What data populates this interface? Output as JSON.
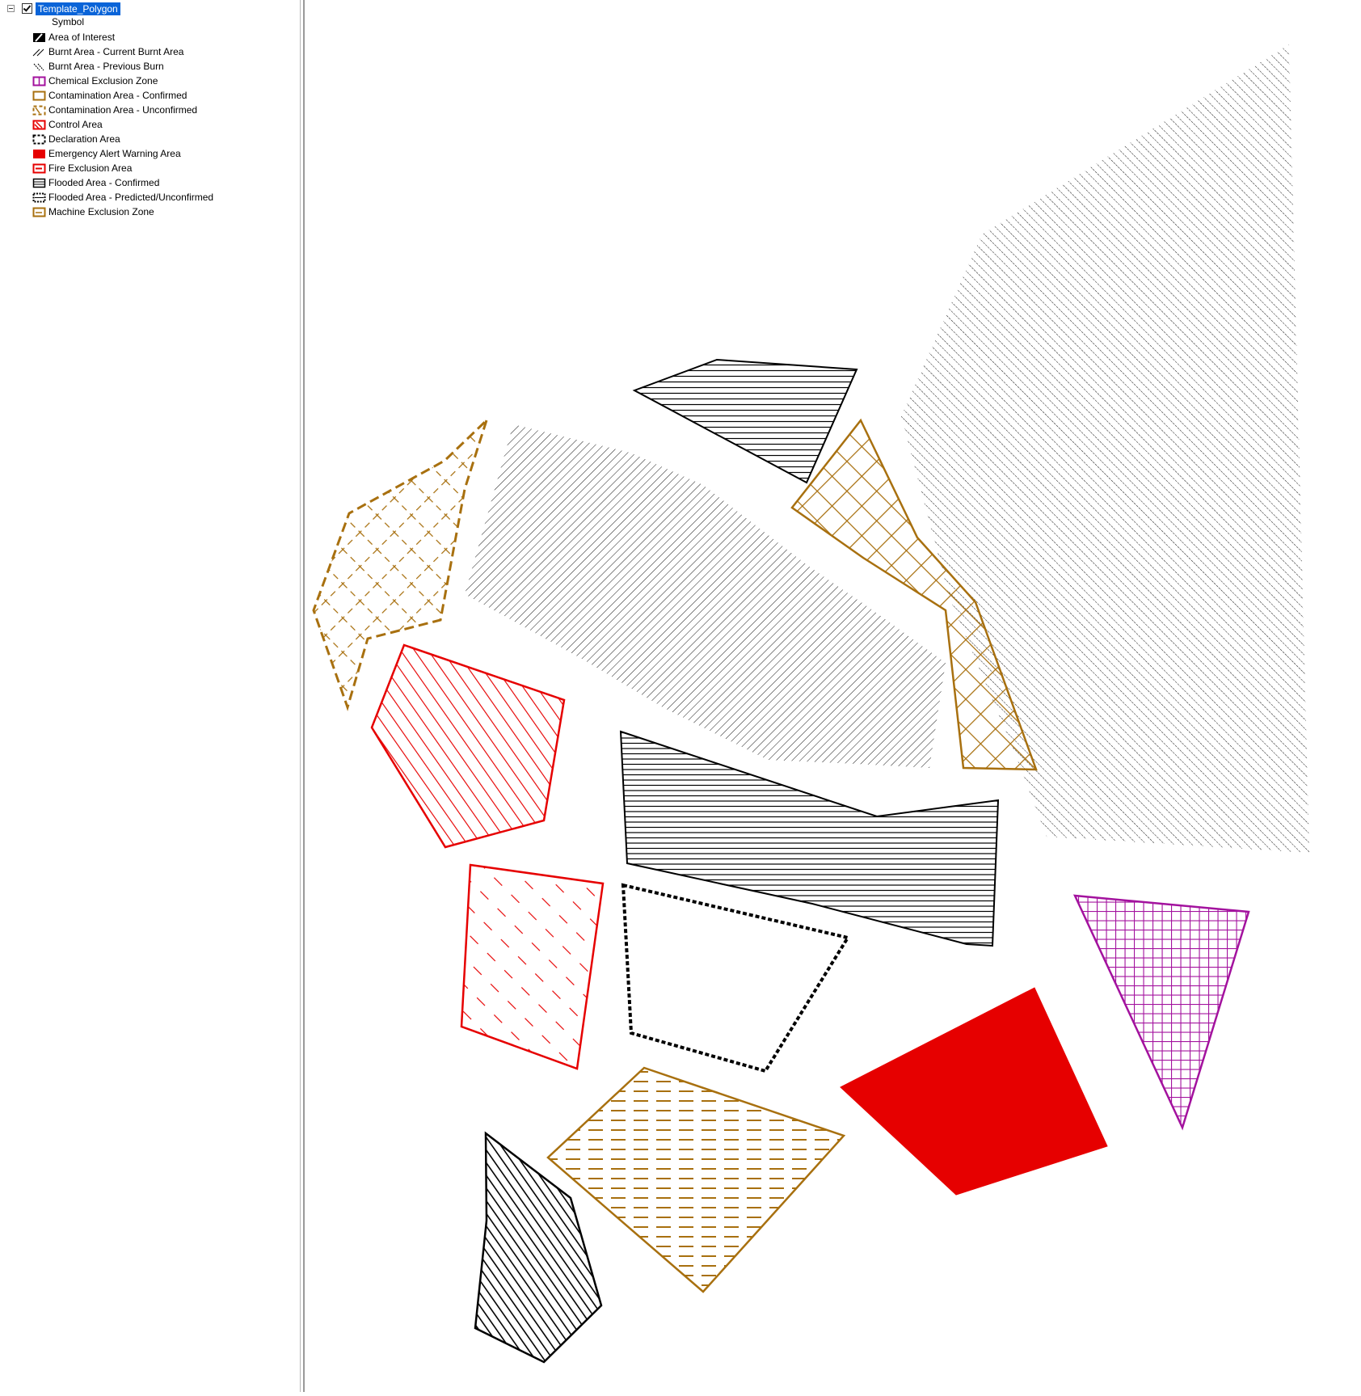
{
  "toc": {
    "layer_name": "Template_Polygon",
    "symbol_header": "Symbol",
    "legend": [
      {
        "label": "Area of Interest",
        "icon": "area-of-interest-symbol-icon"
      },
      {
        "label": "Burnt Area - Current Burnt Area",
        "icon": "burnt-current-symbol-icon"
      },
      {
        "label": "Burnt Area - Previous Burn",
        "icon": "burnt-previous-symbol-icon"
      },
      {
        "label": "Chemical Exclusion Zone",
        "icon": "chemical-exclusion-symbol-icon"
      },
      {
        "label": "Contamination Area - Confirmed",
        "icon": "contamination-confirmed-symbol-icon"
      },
      {
        "label": "Contamination Area - Unconfirmed",
        "icon": "contamination-unconfirmed-symbol-icon"
      },
      {
        "label": "Control Area",
        "icon": "control-area-symbol-icon"
      },
      {
        "label": "Declaration Area",
        "icon": "declaration-area-symbol-icon"
      },
      {
        "label": "Emergency Alert Warning Area",
        "icon": "emergency-alert-symbol-icon"
      },
      {
        "label": "Fire Exclusion Area",
        "icon": "fire-exclusion-symbol-icon"
      },
      {
        "label": "Flooded Area - Confirmed",
        "icon": "flooded-confirmed-symbol-icon"
      },
      {
        "label": "Flooded Area - Predicted/Unconfirmed",
        "icon": "flooded-predicted-symbol-icon"
      },
      {
        "label": "Machine Exclusion Zone",
        "icon": "machine-exclusion-symbol-icon"
      }
    ]
  },
  "colors": {
    "selection": "#0a64d8",
    "black": "#000000",
    "red": "#e60000",
    "brown": "#a8700f",
    "magenta": "#a3129e"
  }
}
